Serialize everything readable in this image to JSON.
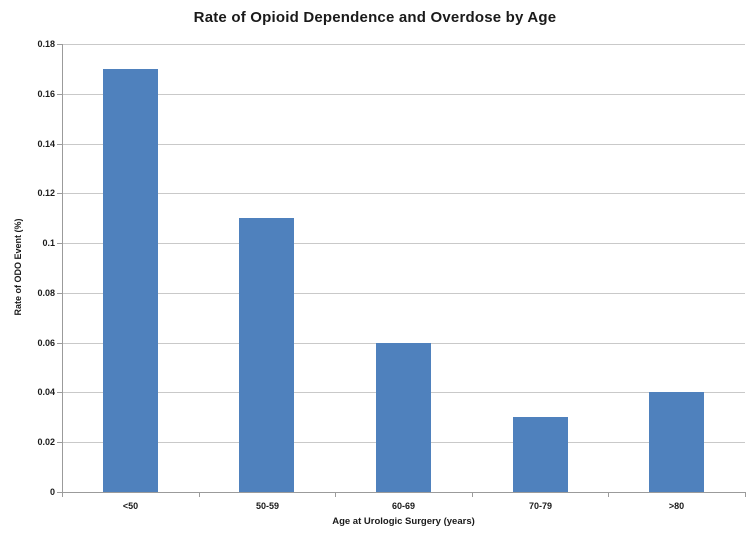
{
  "chart_data": {
    "type": "bar",
    "title": "Rate of Opioid Dependence and Overdose by Age",
    "categories": [
      "<50",
      "50-59",
      "60-69",
      "70-79",
      ">80"
    ],
    "values": [
      0.17,
      0.11,
      0.06,
      0.03,
      0.04
    ],
    "xlabel": "Age at Urologic Surgery (years)",
    "ylabel": "Rate of ODO Event (%)",
    "ylim": [
      0,
      0.18
    ],
    "ytick_step": 0.02,
    "ytick_labels": [
      "0",
      "0.02",
      "0.04",
      "0.06",
      "0.08",
      "0.1",
      "0.12",
      "0.14",
      "0.16",
      "0.18"
    ],
    "grid": true,
    "legend": false,
    "bar_color": "#4F81BD",
    "gridline_color": "#C9C9C9",
    "axis_color": "#9B9B9B",
    "text_color": "#1a1a1a"
  }
}
